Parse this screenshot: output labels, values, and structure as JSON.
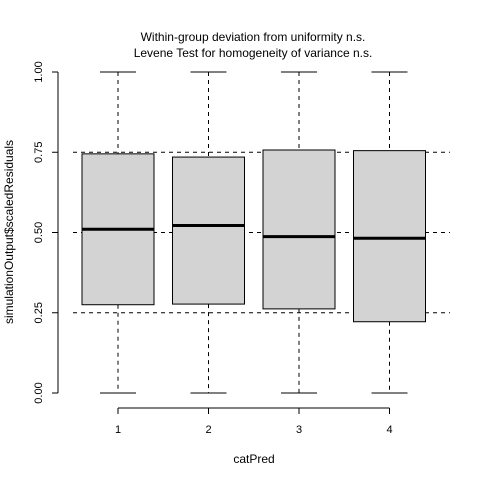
{
  "chart_data": {
    "type": "boxplot",
    "title": [
      "Within-group deviation from uniformity n.s.",
      "Levene Test for homogeneity of variance n.s."
    ],
    "xlabel": "catPred",
    "ylabel": "simulationOutput$scaledResiduals",
    "categories": [
      "1",
      "2",
      "3",
      "4"
    ],
    "ylim": [
      0,
      1
    ],
    "yticks": [
      "0.00",
      "0.25",
      "0.50",
      "0.75",
      "1.00"
    ],
    "reference_lines": [
      0.25,
      0.5,
      0.75
    ],
    "box_fill": "#d3d3d3",
    "boxes": [
      {
        "category": "1",
        "min": 0.0,
        "q1": 0.275,
        "median": 0.51,
        "q3": 0.745,
        "max": 1.0
      },
      {
        "category": "2",
        "min": 0.0,
        "q1": 0.277,
        "median": 0.522,
        "q3": 0.735,
        "max": 1.0
      },
      {
        "category": "3",
        "min": 0.0,
        "q1": 0.262,
        "median": 0.487,
        "q3": 0.757,
        "max": 1.0
      },
      {
        "category": "4",
        "min": 0.0,
        "q1": 0.222,
        "median": 0.482,
        "q3": 0.755,
        "max": 1.0
      }
    ]
  }
}
